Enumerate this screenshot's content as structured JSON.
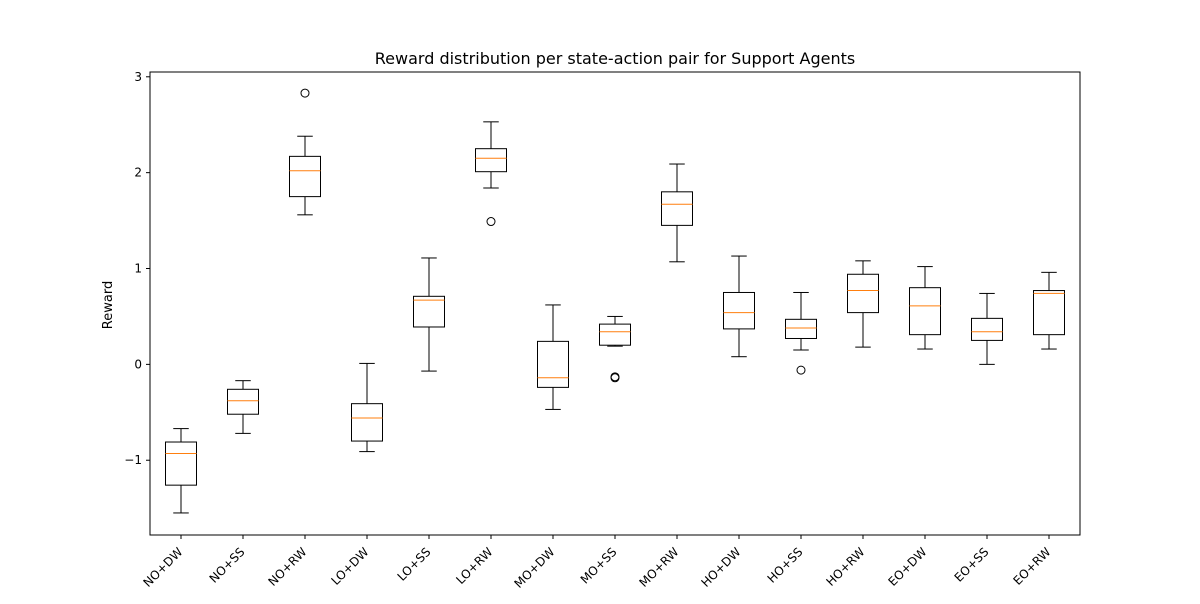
{
  "chart_data": {
    "type": "boxplot",
    "title": "Reward distribution per state-action pair for Support Agents",
    "xlabel": "",
    "ylabel": "Reward",
    "ylim": [
      -1.78,
      3.05
    ],
    "yticks": [
      -1,
      0,
      1,
      2,
      3
    ],
    "grid": false,
    "colors": {
      "box": "#000000",
      "median": "#ff7f0e"
    },
    "categories": [
      "NO+DW",
      "NO+SS",
      "NO+RW",
      "LO+DW",
      "LO+SS",
      "LO+RW",
      "MO+DW",
      "MO+SS",
      "MO+RW",
      "HO+DW",
      "HO+SS",
      "HO+RW",
      "EO+DW",
      "EO+SS",
      "EO+RW"
    ],
    "boxes": [
      {
        "whisker_low": -1.55,
        "q1": -1.26,
        "median": -0.93,
        "q3": -0.81,
        "whisker_high": -0.67,
        "outliers": []
      },
      {
        "whisker_low": -0.72,
        "q1": -0.52,
        "median": -0.38,
        "q3": -0.26,
        "whisker_high": -0.17,
        "outliers": []
      },
      {
        "whisker_low": 1.56,
        "q1": 1.75,
        "median": 2.02,
        "q3": 2.17,
        "whisker_high": 2.38,
        "outliers": [
          2.83
        ]
      },
      {
        "whisker_low": -0.91,
        "q1": -0.8,
        "median": -0.56,
        "q3": -0.41,
        "whisker_high": 0.01,
        "outliers": []
      },
      {
        "whisker_low": -0.07,
        "q1": 0.39,
        "median": 0.67,
        "q3": 0.71,
        "whisker_high": 1.11,
        "outliers": []
      },
      {
        "whisker_low": 1.84,
        "q1": 2.01,
        "median": 2.15,
        "q3": 2.25,
        "whisker_high": 2.53,
        "outliers": [
          1.49
        ]
      },
      {
        "whisker_low": -0.47,
        "q1": -0.24,
        "median": -0.14,
        "q3": 0.24,
        "whisker_high": 0.62,
        "outliers": []
      },
      {
        "whisker_low": 0.19,
        "q1": 0.2,
        "median": 0.34,
        "q3": 0.42,
        "whisker_high": 0.5,
        "outliers": [
          -0.13,
          -0.14
        ]
      },
      {
        "whisker_low": 1.07,
        "q1": 1.45,
        "median": 1.67,
        "q3": 1.8,
        "whisker_high": 2.09,
        "outliers": []
      },
      {
        "whisker_low": 0.08,
        "q1": 0.37,
        "median": 0.54,
        "q3": 0.75,
        "whisker_high": 1.13,
        "outliers": []
      },
      {
        "whisker_low": 0.15,
        "q1": 0.27,
        "median": 0.38,
        "q3": 0.47,
        "whisker_high": 0.75,
        "outliers": [
          -0.06
        ]
      },
      {
        "whisker_low": 0.18,
        "q1": 0.54,
        "median": 0.77,
        "q3": 0.94,
        "whisker_high": 1.08,
        "outliers": []
      },
      {
        "whisker_low": 0.16,
        "q1": 0.31,
        "median": 0.61,
        "q3": 0.8,
        "whisker_high": 1.02,
        "outliers": []
      },
      {
        "whisker_low": 0.0,
        "q1": 0.25,
        "median": 0.34,
        "q3": 0.48,
        "whisker_high": 0.74,
        "outliers": []
      },
      {
        "whisker_low": 0.16,
        "q1": 0.31,
        "median": 0.74,
        "q3": 0.77,
        "whisker_high": 0.96,
        "outliers": []
      }
    ]
  }
}
